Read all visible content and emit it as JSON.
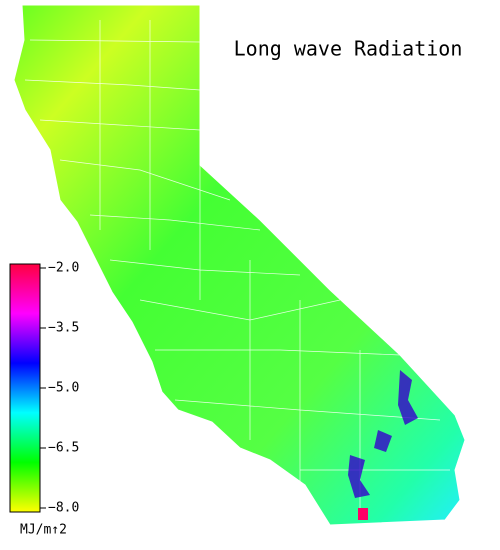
{
  "title": "Long wave Radiation",
  "colorbar": {
    "vlim": [
      -8,
      -2
    ],
    "ticks": [
      {
        "value": -2,
        "label": "−2.0"
      },
      {
        "value": -3.5,
        "label": "−3.5"
      },
      {
        "value": -5,
        "label": "−5.0"
      },
      {
        "value": -6.5,
        "label": "−6.5"
      },
      {
        "value": -8,
        "label": "−8.0"
      }
    ],
    "colors": [
      "#ff0040",
      "#ff00ff",
      "#0000ff",
      "#00ffff",
      "#00ff00",
      "#ffff00"
    ],
    "unit": "MJ/m↑2"
  }
}
